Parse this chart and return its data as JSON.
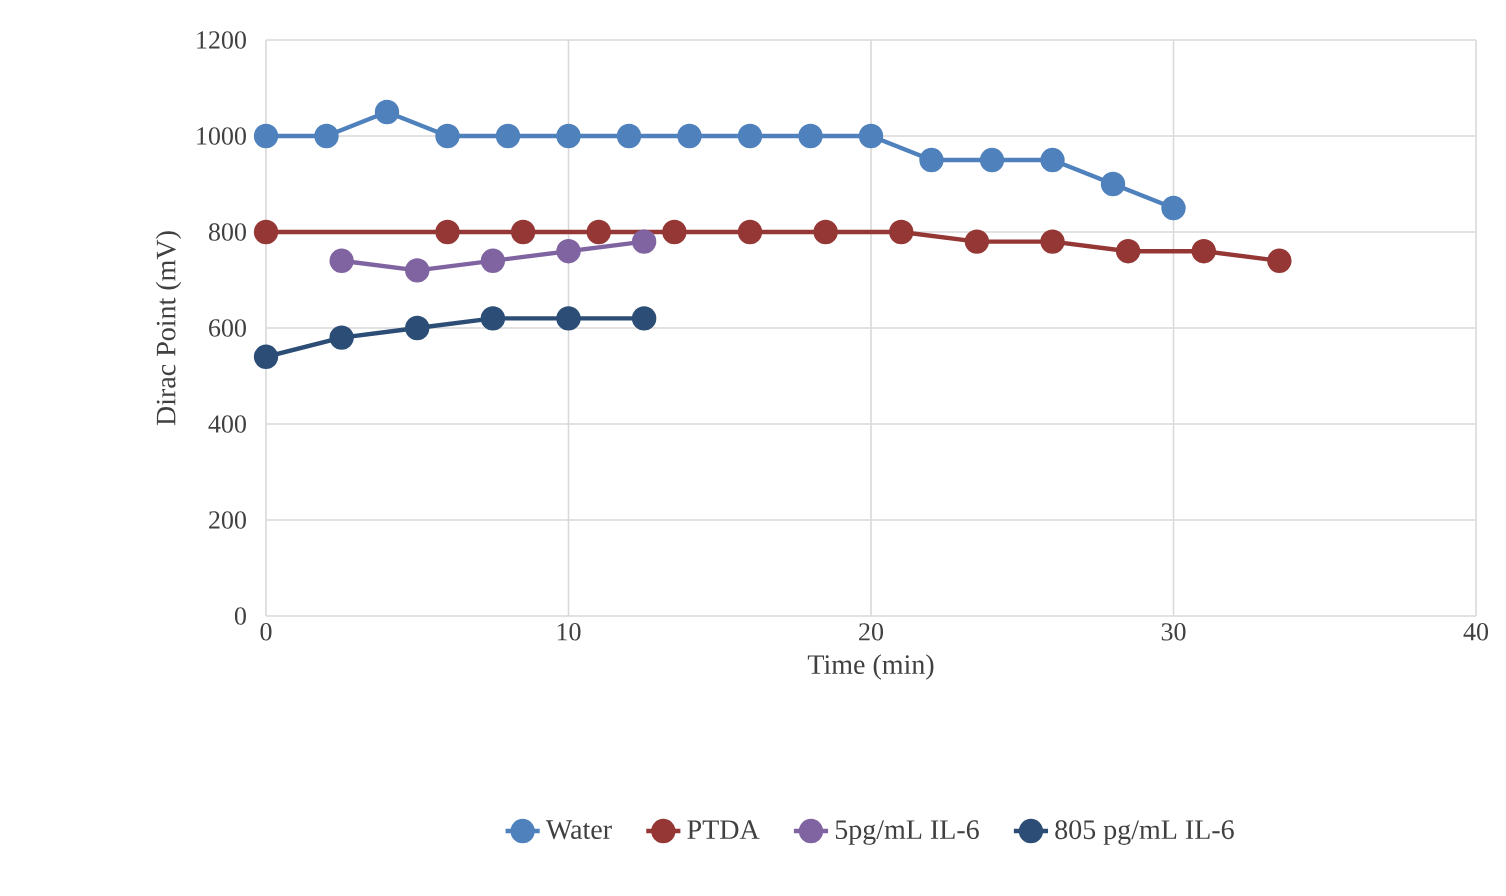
{
  "chart_data": {
    "type": "line",
    "xlabel": "Time (min)",
    "ylabel": "Dirac Point (mV)",
    "xlim": [
      0,
      40
    ],
    "xticks": [
      0,
      10,
      20,
      30,
      40
    ],
    "ylim": [
      0,
      1200
    ],
    "yticks": [
      0,
      200,
      400,
      600,
      800,
      1000,
      1200
    ],
    "grid": true,
    "legend": "bottom",
    "marker": "circle",
    "line_style": "solid",
    "series": [
      {
        "name": "Water",
        "color": "#4f81bd",
        "x": [
          0,
          2,
          4,
          6,
          8,
          10,
          12,
          14,
          16,
          18,
          20,
          22,
          24,
          26,
          28,
          30
        ],
        "values": [
          1000,
          1000,
          1050,
          1000,
          1000,
          1000,
          1000,
          1000,
          1000,
          1000,
          1000,
          950,
          950,
          950,
          900,
          850
        ]
      },
      {
        "name": "PTDA",
        "color": "#953735",
        "x": [
          0,
          6,
          8.5,
          11,
          13.5,
          16,
          18.5,
          21,
          23.5,
          26,
          28.5,
          31,
          33.5
        ],
        "values": [
          800,
          800,
          800,
          800,
          800,
          800,
          800,
          800,
          780,
          780,
          760,
          760,
          740
        ]
      },
      {
        "name": "5pg/mL IL-6",
        "color": "#8064a2",
        "x": [
          2.5,
          5,
          7.5,
          10,
          12.5
        ],
        "values": [
          740,
          720,
          740,
          760,
          780
        ]
      },
      {
        "name": "805 pg/mL IL-6",
        "color": "#2c4d75",
        "x": [
          0,
          2.5,
          5,
          7.5,
          10,
          12.5
        ],
        "values": [
          540,
          580,
          600,
          620,
          620,
          620
        ]
      }
    ]
  }
}
